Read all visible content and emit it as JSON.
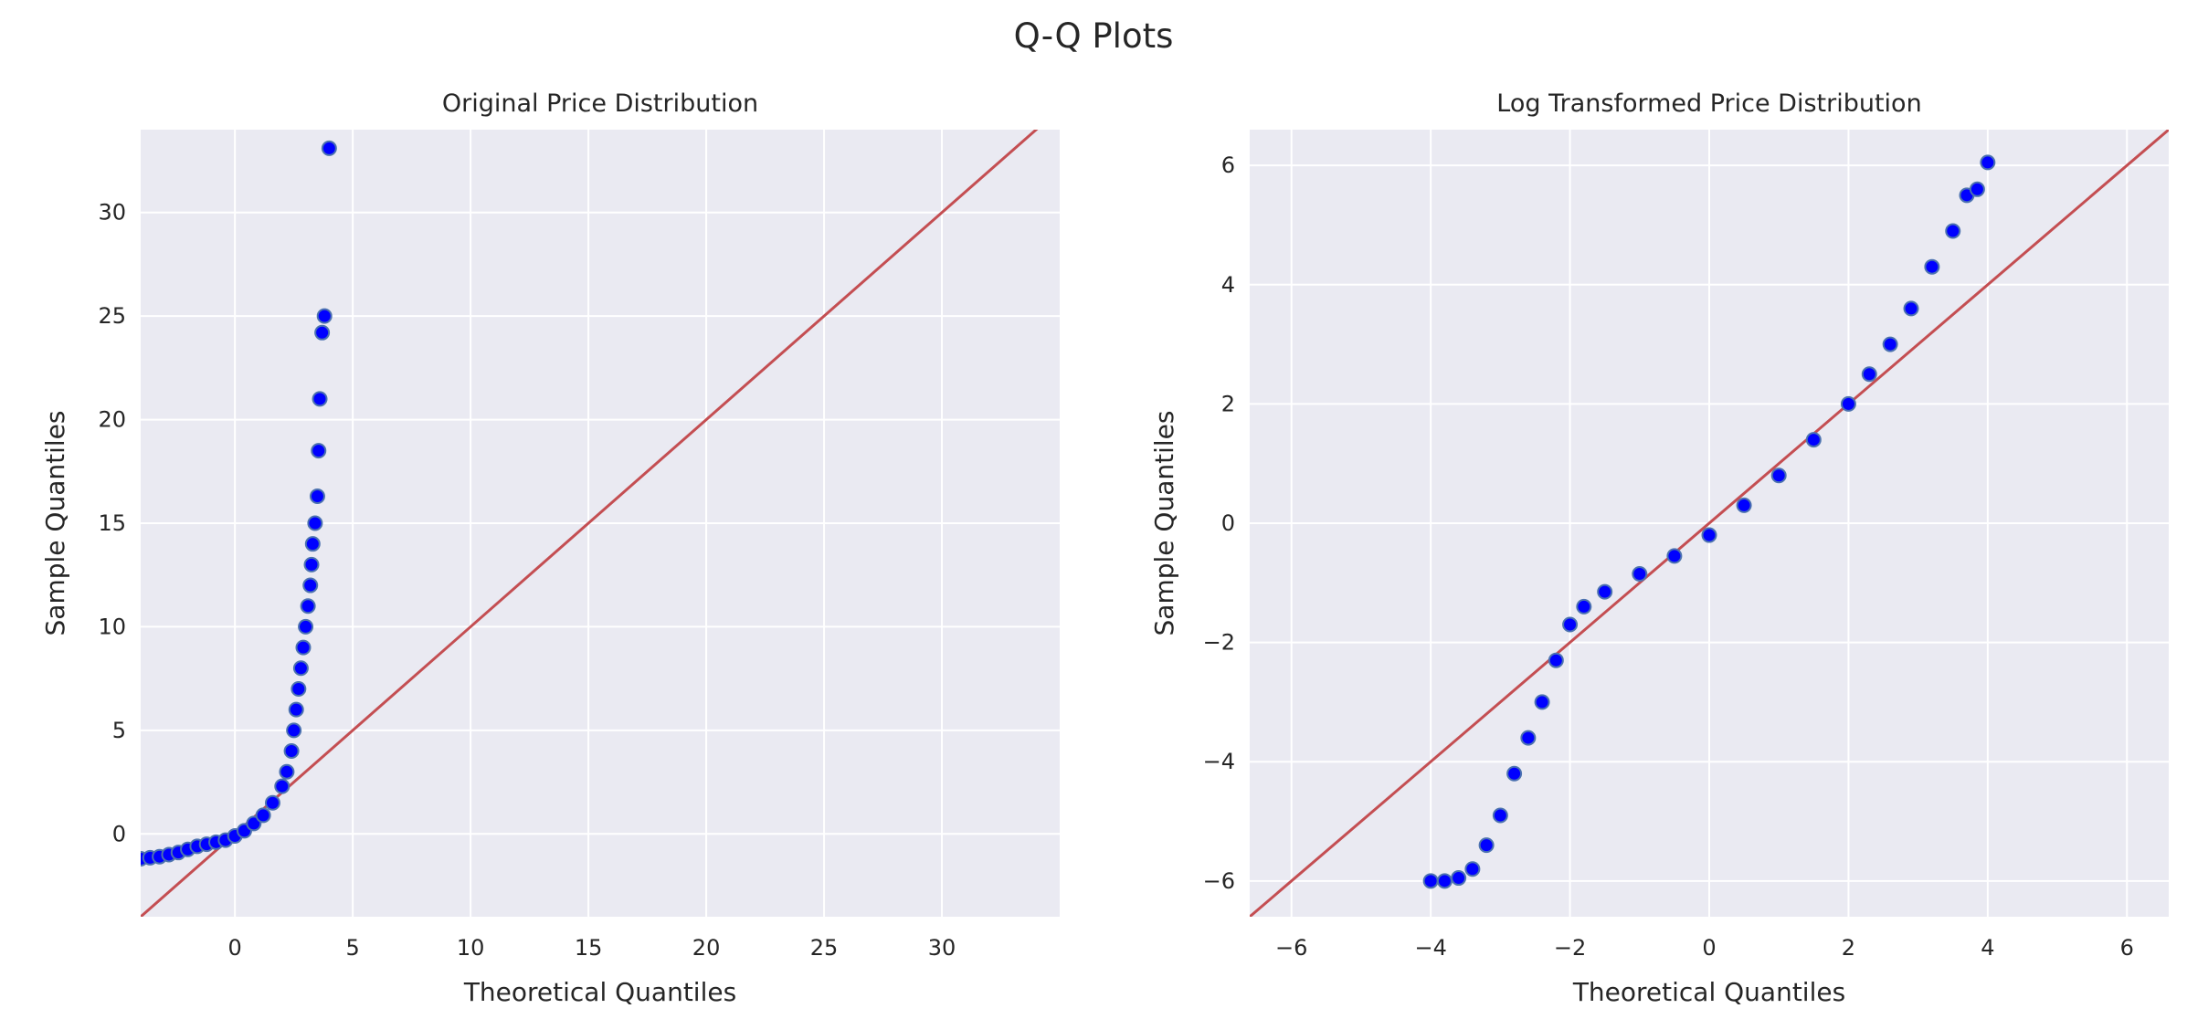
{
  "figure": {
    "suptitle": "Q-Q Plots"
  },
  "colors": {
    "axes_bg": "#EAEAF2",
    "grid": "#FFFFFF",
    "line": "#C44E52",
    "marker_face": "#0000FF",
    "marker_edge": "#4C72B0",
    "text": "#262626"
  },
  "chart_data": [
    {
      "type": "scatter",
      "title": "Original Price Distribution",
      "xlabel": "Theoretical Quantiles",
      "ylabel": "Sample Quantiles",
      "xlim": [
        -4,
        35
      ],
      "ylim": [
        -4,
        34
      ],
      "xticks": [
        0,
        5,
        10,
        15,
        20,
        25,
        30
      ],
      "yticks": [
        0,
        5,
        10,
        15,
        20,
        25,
        30
      ],
      "xtick_labels": [
        "0",
        "5",
        "10",
        "15",
        "20",
        "25",
        "30"
      ],
      "ytick_labels": [
        "0",
        "5",
        "10",
        "15",
        "20",
        "25",
        "30"
      ],
      "grid": true,
      "reference_line": "45-degree (y = x)",
      "series": [
        {
          "values_xy": [
            [
              -4.0,
              -1.2
            ],
            [
              -3.6,
              -1.15
            ],
            [
              -3.2,
              -1.1
            ],
            [
              -2.8,
              -1.0
            ],
            [
              -2.4,
              -0.9
            ],
            [
              -2.0,
              -0.75
            ],
            [
              -1.6,
              -0.6
            ],
            [
              -1.2,
              -0.5
            ],
            [
              -0.8,
              -0.4
            ],
            [
              -0.4,
              -0.3
            ],
            [
              0.0,
              -0.1
            ],
            [
              0.4,
              0.15
            ],
            [
              0.8,
              0.5
            ],
            [
              1.2,
              0.9
            ],
            [
              1.6,
              1.5
            ],
            [
              2.0,
              2.3
            ],
            [
              2.2,
              3.0
            ],
            [
              2.4,
              4.0
            ],
            [
              2.5,
              5.0
            ],
            [
              2.6,
              6.0
            ],
            [
              2.7,
              7.0
            ],
            [
              2.8,
              8.0
            ],
            [
              2.9,
              9.0
            ],
            [
              3.0,
              10.0
            ],
            [
              3.1,
              11.0
            ],
            [
              3.2,
              12.0
            ],
            [
              3.25,
              13.0
            ],
            [
              3.3,
              14.0
            ],
            [
              3.4,
              15.0
            ],
            [
              3.5,
              16.3
            ],
            [
              3.55,
              18.5
            ],
            [
              3.6,
              21.0
            ],
            [
              3.7,
              24.2
            ],
            [
              3.8,
              25.0
            ],
            [
              4.0,
              33.1
            ]
          ]
        }
      ]
    },
    {
      "type": "scatter",
      "title": "Log Transformed Price Distribution",
      "xlabel": "Theoretical Quantiles",
      "ylabel": "Sample Quantiles",
      "xlim": [
        -6.6,
        6.6
      ],
      "ylim": [
        -6.6,
        6.6
      ],
      "xticks": [
        -6,
        -4,
        -2,
        0,
        2,
        4,
        6
      ],
      "yticks": [
        -6,
        -4,
        -2,
        0,
        2,
        4,
        6
      ],
      "xtick_labels": [
        "−6",
        "−4",
        "−2",
        "0",
        "2",
        "4",
        "6"
      ],
      "ytick_labels": [
        "−6",
        "−4",
        "−2",
        "0",
        "2",
        "4",
        "6"
      ],
      "grid": true,
      "reference_line": "45-degree (y = x)",
      "series": [
        {
          "values_xy": [
            [
              -4.0,
              -6.0
            ],
            [
              -3.8,
              -6.0
            ],
            [
              -3.6,
              -5.95
            ],
            [
              -3.4,
              -5.8
            ],
            [
              -3.2,
              -5.4
            ],
            [
              -3.0,
              -4.9
            ],
            [
              -2.8,
              -4.2
            ],
            [
              -2.6,
              -3.6
            ],
            [
              -2.4,
              -3.0
            ],
            [
              -2.2,
              -2.3
            ],
            [
              -2.0,
              -1.7
            ],
            [
              -1.8,
              -1.4
            ],
            [
              -1.5,
              -1.15
            ],
            [
              -1.0,
              -0.85
            ],
            [
              -0.5,
              -0.55
            ],
            [
              0.0,
              -0.2
            ],
            [
              0.5,
              0.3
            ],
            [
              1.0,
              0.8
            ],
            [
              1.5,
              1.4
            ],
            [
              2.0,
              2.0
            ],
            [
              2.3,
              2.5
            ],
            [
              2.6,
              3.0
            ],
            [
              2.9,
              3.6
            ],
            [
              3.2,
              4.3
            ],
            [
              3.5,
              4.9
            ],
            [
              3.7,
              5.5
            ],
            [
              3.85,
              5.6
            ],
            [
              4.0,
              6.05
            ]
          ]
        }
      ]
    }
  ]
}
